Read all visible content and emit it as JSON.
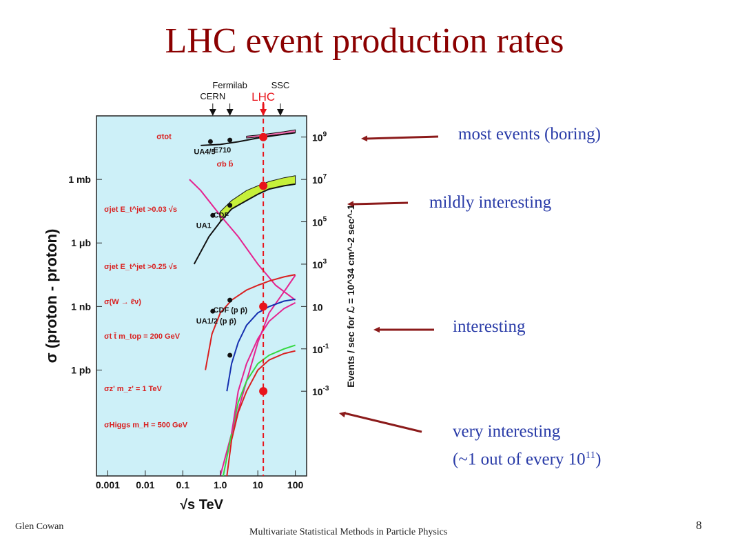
{
  "slide": {
    "title": "LHC event production rates",
    "author": "Glen Cowan",
    "course": "Multivariate Statistical Methods in Particle Physics",
    "page": "8"
  },
  "annotations": [
    {
      "text": "most events (boring)"
    },
    {
      "text": "mildly interesting"
    },
    {
      "text": "interesting"
    },
    {
      "text": "very interesting"
    },
    {
      "prefix": "(~1 out of every 10",
      "sup": "11",
      "suffix": ")"
    }
  ],
  "colors": {
    "title": "#8b0000",
    "annotation_text": "#2a3ca8",
    "arrow": "#8b1a1a",
    "plot_background": "#cdf0f8",
    "lhc_marker": "#e8141b",
    "magenta": "#e5228f",
    "red": "#d92020",
    "blue": "#1530b0",
    "green": "#34d840",
    "bb_band": "#c6f03a",
    "tot_band": "#f06bb0"
  },
  "chart_data": {
    "type": "line",
    "xlabel": "√s   TeV",
    "ylabel_left": "σ (proton - proton)",
    "ylabel_right": "Events / sec for ℒ = 10^34 cm^-2 sec^-1",
    "x_scale": "log",
    "xlim": [
      0.0005,
      200
    ],
    "x_ticks": [
      {
        "value": 0.001,
        "label": "0.001"
      },
      {
        "value": 0.01,
        "label": "0.01"
      },
      {
        "value": 0.1,
        "label": "0.1"
      },
      {
        "value": 1,
        "label": "1.0"
      },
      {
        "value": 10,
        "label": "10"
      },
      {
        "value": 100,
        "label": "100"
      }
    ],
    "y_scale": "log",
    "ylim_mb": [
      1e-14,
      1000.0
    ],
    "y_ticks_left": [
      {
        "value": 1,
        "label": "1 mb"
      },
      {
        "value": 0.001,
        "label": "1 μb"
      },
      {
        "value": 1e-06,
        "label": "1 nb"
      },
      {
        "value": 1e-09,
        "label": "1 pb"
      }
    ],
    "y_ticks_right": [
      {
        "events": 1000000000.0,
        "label": "10^9"
      },
      {
        "events": 10000000.0,
        "label": "10^7"
      },
      {
        "events": 100000.0,
        "label": "10^5"
      },
      {
        "events": 1000.0,
        "label": "10^3"
      },
      {
        "events": 10,
        "label": "10"
      },
      {
        "events": 0.1,
        "label": "10^-1"
      },
      {
        "events": 0.001,
        "label": "10^-3"
      }
    ],
    "right_axis_conversion": "events_per_sec = sigma_mb * 1e7",
    "machines": [
      {
        "name": "CERN",
        "sqrt_s": 0.63
      },
      {
        "name": "Fermilab",
        "sqrt_s": 1.8
      },
      {
        "name": "LHC",
        "sqrt_s": 14
      },
      {
        "name": "SSC",
        "sqrt_s": 40
      }
    ],
    "lhc_line": 14,
    "series": [
      {
        "label": "σ_tot",
        "color": "#111111",
        "x": [
          0.3,
          1,
          3,
          10,
          30,
          100
        ],
        "y": [
          40,
          45,
          60,
          90,
          120,
          160
        ]
      },
      {
        "label": "σ_bb̄",
        "color": "#111111",
        "x": [
          0.2,
          0.5,
          1,
          2,
          5,
          10,
          20,
          50,
          100
        ],
        "y": [
          0.0001,
          0.002,
          0.01,
          0.04,
          0.1,
          0.2,
          0.35,
          0.5,
          0.6
        ]
      },
      {
        "label": "σ_jet (E_t^jet > 0.03√s)",
        "color": "#e5228f",
        "x": [
          0.15,
          0.3,
          1,
          3,
          10,
          30,
          100
        ],
        "y": [
          1,
          0.3,
          0.02,
          0.002,
          0.0001,
          1e-05,
          2e-06
        ]
      },
      {
        "label": "σ_jet (E_t^jet > 0.25√s)",
        "color": "#e5228f",
        "x": [
          1,
          2,
          5,
          10,
          20,
          50,
          100
        ],
        "y": [
          1e-14,
          1e-12,
          3e-10,
          2e-08,
          5e-07,
          5e-06,
          3e-05
        ]
      },
      {
        "label": "σ(W → ℓν)",
        "color": "#d92020",
        "x": [
          0.4,
          0.6,
          1,
          2,
          5,
          10,
          20,
          50,
          100
        ],
        "y": [
          1e-09,
          5e-08,
          5e-07,
          2e-06,
          6e-06,
          1e-05,
          1.6e-05,
          2.5e-05,
          3.2e-05
        ]
      },
      {
        "label": "σ_tt̄ (m_top = 200 GeV)",
        "color": "#1530b0",
        "x": [
          1.5,
          2,
          3,
          5,
          10,
          20,
          50,
          100
        ],
        "y": [
          1e-10,
          2e-09,
          2e-08,
          1.3e-07,
          5e-07,
          1e-06,
          1.8e-06,
          2.2e-06
        ]
      },
      {
        "label": "σ_Z' (m_Z' = 1 TeV)",
        "color": "#34d840",
        "x": [
          1.2,
          2,
          3,
          5,
          10,
          20,
          50,
          100
        ],
        "y": [
          1e-14,
          1e-12,
          3e-11,
          3e-10,
          2e-09,
          5e-09,
          1e-08,
          1.5e-08
        ]
      },
      {
        "label": "σ_Higgs (m_H = 500 GeV)",
        "color": "#d92020",
        "x": [
          1.5,
          2,
          3,
          5,
          10,
          20,
          50,
          100
        ],
        "y": [
          1e-14,
          5e-13,
          1e-11,
          1e-10,
          1e-09,
          3e-09,
          6e-09,
          8e-09
        ]
      },
      {
        "label": "",
        "color": "#e5228f",
        "x": [
          2,
          3,
          5,
          10,
          20,
          50,
          100
        ],
        "y": [
          1e-12,
          1e-10,
          2e-09,
          3e-08,
          2e-07,
          8e-07,
          1.5e-06
        ]
      }
    ],
    "bands": [
      {
        "label": "σ_tot band",
        "color": "#f06bb0",
        "x": [
          5,
          10,
          20,
          50,
          100
        ],
        "lower": [
          90,
          100,
          115,
          140,
          160
        ],
        "upper": [
          110,
          125,
          145,
          180,
          220
        ]
      },
      {
        "label": "σ_bb̄ band",
        "color": "#c6f03a",
        "x": [
          1,
          2,
          5,
          10,
          20,
          50,
          100
        ],
        "lower": [
          0.01,
          0.04,
          0.1,
          0.2,
          0.35,
          0.5,
          0.6
        ],
        "upper": [
          0.03,
          0.1,
          0.3,
          0.5,
          0.8,
          1.2,
          1.5
        ]
      }
    ],
    "data_points": [
      {
        "label": "UA4/5",
        "x": 0.546,
        "y": 61
      },
      {
        "label": "E710",
        "x": 1.8,
        "y": 72
      },
      {
        "label": "UA1",
        "x": 0.63,
        "y": 0.02
      },
      {
        "label": "CDF",
        "x": 1.8,
        "y": 0.06
      },
      {
        "label": "UA1/2 (p p̄)",
        "x": 0.63,
        "y": 6e-07
      },
      {
        "label": "CDF (p p̄)",
        "x": 1.8,
        "y": 2e-06
      },
      {
        "label": "",
        "x": 1.8,
        "y": 5e-09
      }
    ],
    "lhc_points": [
      {
        "x": 14,
        "y": 100
      },
      {
        "x": 14,
        "y": 0.5
      },
      {
        "x": 14,
        "y": 1e-06
      },
      {
        "x": 14,
        "y": 1e-10
      }
    ],
    "curve_labels": [
      {
        "text": "σtot",
        "x": 0.02,
        "y": 80
      },
      {
        "text": "σb b̄",
        "x": 0.8,
        "y": 4
      },
      {
        "text": "σjet  E_t^jet >0.03 √s",
        "x": 0.0008,
        "y": 0.03
      },
      {
        "text": "σjet  E_t^jet >0.25 √s",
        "x": 0.0008,
        "y": 6e-05
      },
      {
        "text": "σ(W → ℓν)",
        "x": 0.0008,
        "y": 1.3e-06
      },
      {
        "text": "σt t̄  m_top = 200 GeV",
        "x": 0.0008,
        "y": 3e-08
      },
      {
        "text": "σz'  m_z' = 1 TeV",
        "x": 0.0008,
        "y": 1e-10
      },
      {
        "text": "σHiggs  m_H = 500 GeV",
        "x": 0.0008,
        "y": 2e-12
      }
    ]
  }
}
